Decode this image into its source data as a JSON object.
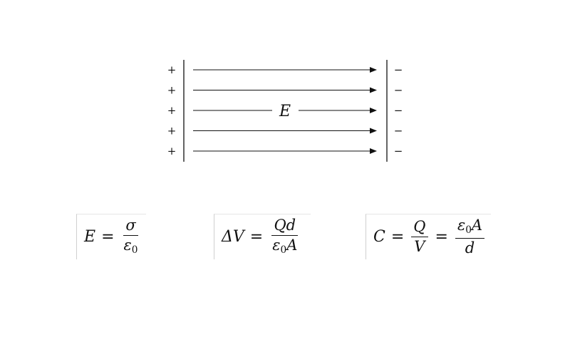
{
  "diagram": {
    "positive_sign": "+",
    "negative_sign": "−",
    "field_label": "E",
    "field_line_count": 5
  },
  "equations": {
    "field": {
      "lhs": "E",
      "equals": "=",
      "num": "σ",
      "den_sym": "ε",
      "den_sub": "0"
    },
    "potential": {
      "lhs": "ΔV",
      "equals": "=",
      "num": "Qd",
      "den_sym": "ε",
      "den_sub": "0",
      "den_rest": "A"
    },
    "capacitance": {
      "lhs": "C",
      "equals": "=",
      "num1": "Q",
      "den1": "V",
      "equals2": "=",
      "num2_sym": "ε",
      "num2_sub": "0",
      "num2_rest": "A",
      "den2": "d"
    }
  }
}
